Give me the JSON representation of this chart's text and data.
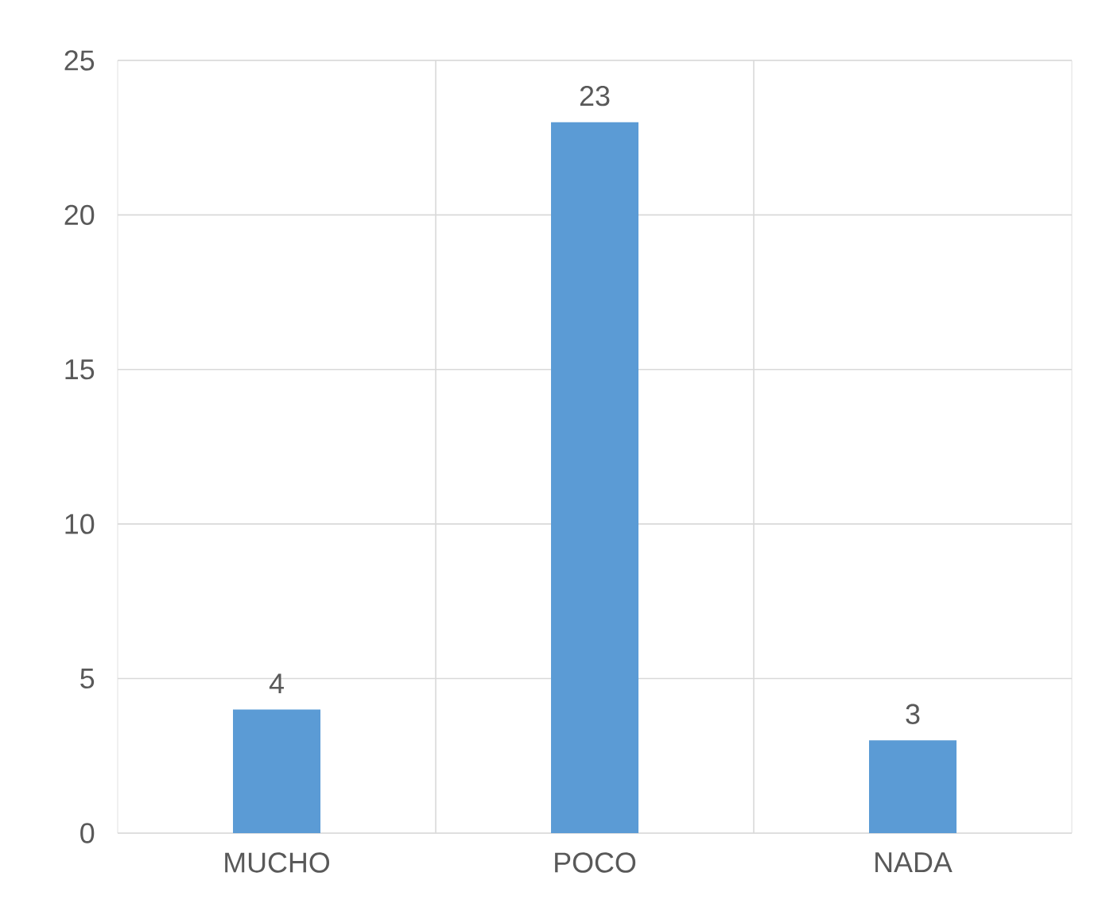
{
  "chart_data": {
    "type": "bar",
    "categories": [
      "MUCHO",
      "POCO",
      "NADA"
    ],
    "values": [
      4,
      23,
      3
    ],
    "color": "#5b9bd5",
    "ylim": [
      0,
      25
    ],
    "yticks": [
      0,
      5,
      10,
      15,
      20,
      25
    ],
    "grid": true,
    "data_labels": true
  }
}
